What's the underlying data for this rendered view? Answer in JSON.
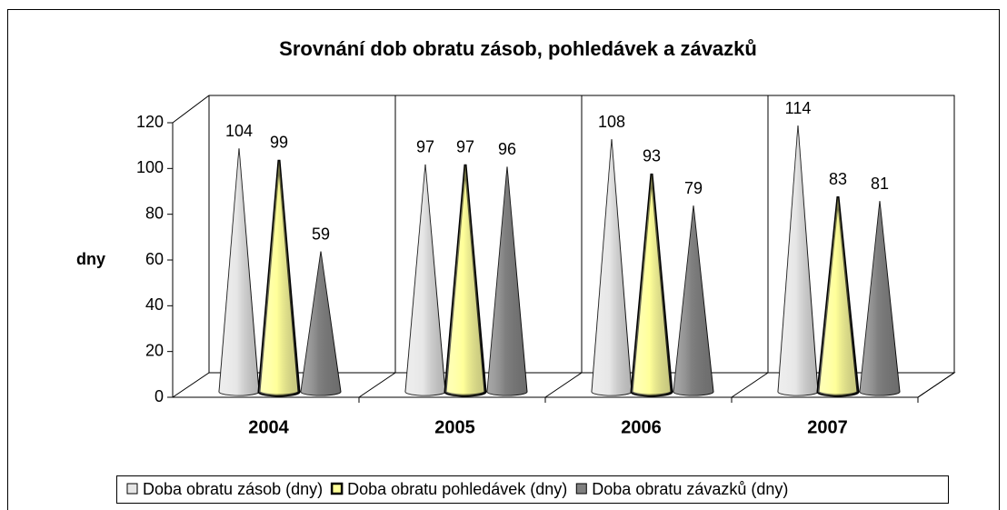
{
  "chart_data": {
    "type": "bar",
    "title": "Srovnání dob obratu zásob, pohledávek a závazků",
    "y_label": "dny",
    "categories": [
      "2004",
      "2005",
      "2006",
      "2007"
    ],
    "series": [
      {
        "name": "Doba obratu zásob (dny)",
        "color": "#e6e6e6",
        "values": [
          104,
          97,
          108,
          114
        ]
      },
      {
        "name": "Doba obratu pohledávek (dny)",
        "color": "#ffff99",
        "values": [
          99,
          97,
          93,
          83
        ]
      },
      {
        "name": "Doba obratu závazků (dny)",
        "color": "#808080",
        "values": [
          59,
          96,
          79,
          81
        ]
      }
    ],
    "ylim": [
      0,
      120
    ],
    "yticks": [
      0,
      20,
      40,
      60,
      80,
      100,
      120
    ],
    "grid": false,
    "legend": "bottom"
  }
}
